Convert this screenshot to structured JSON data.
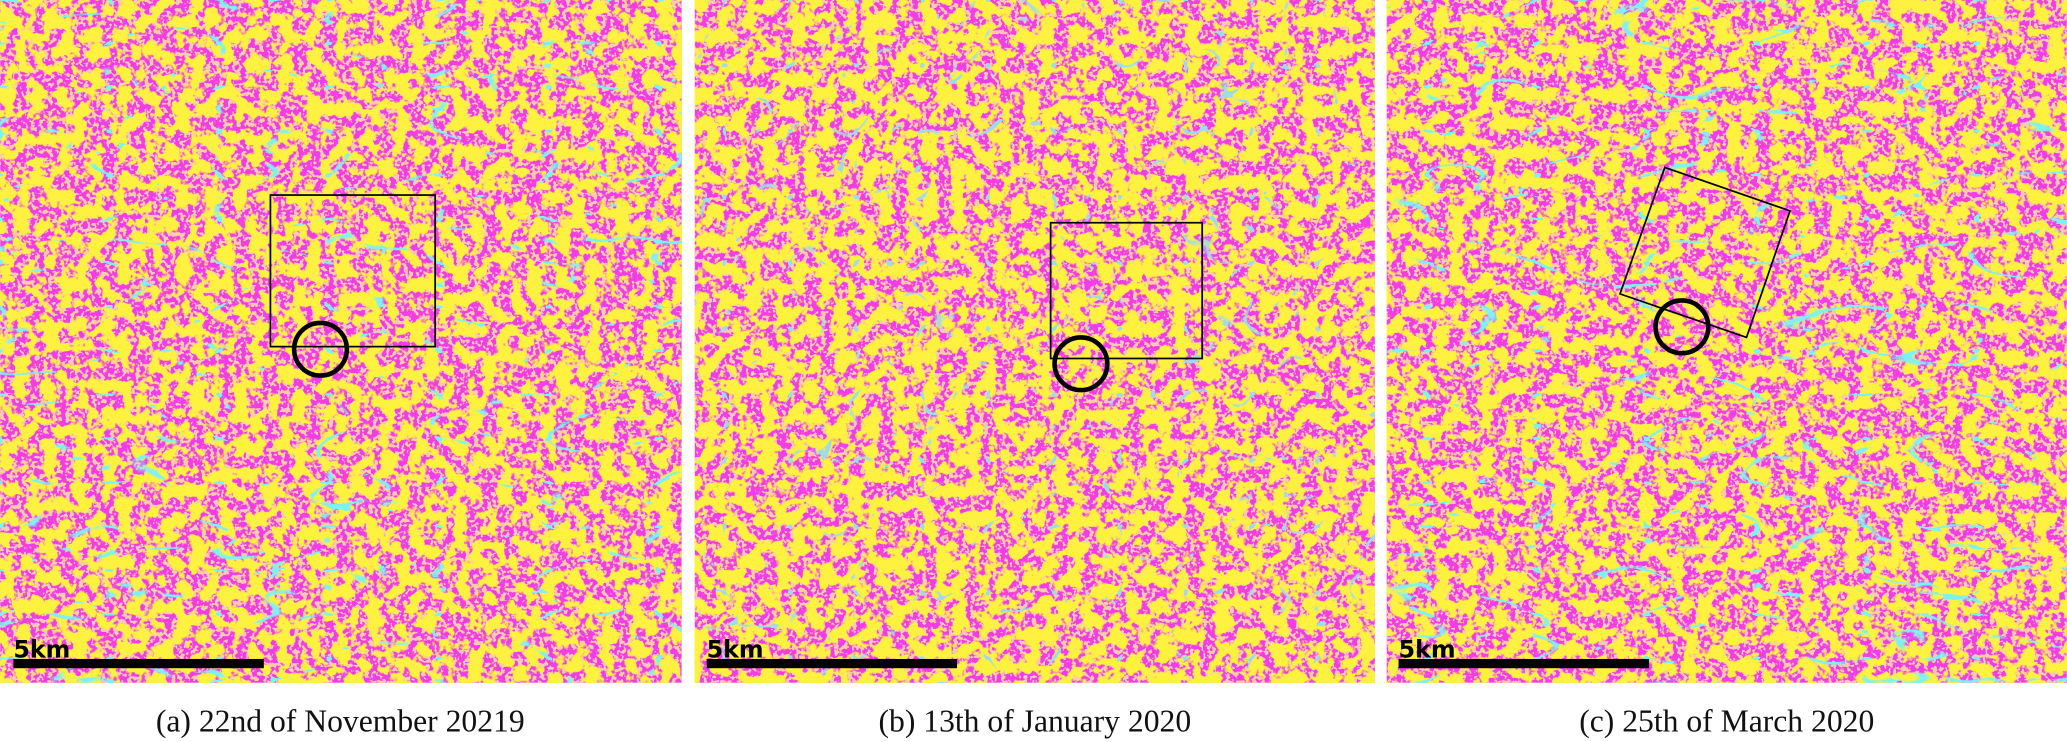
{
  "panels": [
    {
      "scale_label": "5km",
      "caption": "(a) 22nd of November 20219"
    },
    {
      "scale_label": "5km",
      "caption": "(b) 13th of January 2020"
    },
    {
      "scale_label": "5km",
      "caption": "(c) 25th of March 2020"
    }
  ]
}
